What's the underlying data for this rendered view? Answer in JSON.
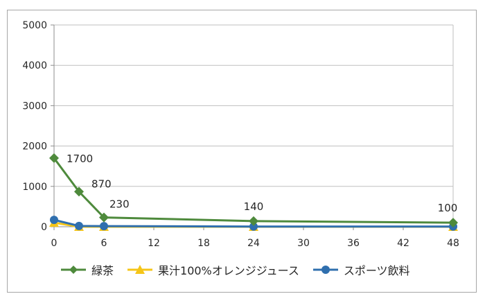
{
  "chart_data": {
    "type": "line",
    "x": [
      0,
      3,
      6,
      24,
      48
    ],
    "xticks": [
      0,
      6,
      12,
      18,
      24,
      30,
      36,
      42,
      48
    ],
    "xlim": [
      0,
      48
    ],
    "ylim": [
      0,
      5000
    ],
    "yticks": [
      0,
      1000,
      2000,
      3000,
      4000,
      5000
    ],
    "grid": true,
    "legend_position": "bottom",
    "series": [
      {
        "name": "緑茶",
        "values": [
          1700,
          870,
          230,
          140,
          100
        ],
        "color": "#4e8a3c",
        "marker": "diamond",
        "labels": [
          "1700",
          "870",
          "230",
          "140",
          "100"
        ]
      },
      {
        "name": "果汁100%オレンジジュース",
        "values": [
          100,
          0,
          0,
          0,
          0
        ],
        "color": "#f5c518",
        "marker": "triangle"
      },
      {
        "name": "スポーツ飲料",
        "values": [
          170,
          20,
          15,
          5,
          5
        ],
        "color": "#2f6fae",
        "marker": "circle"
      }
    ]
  }
}
